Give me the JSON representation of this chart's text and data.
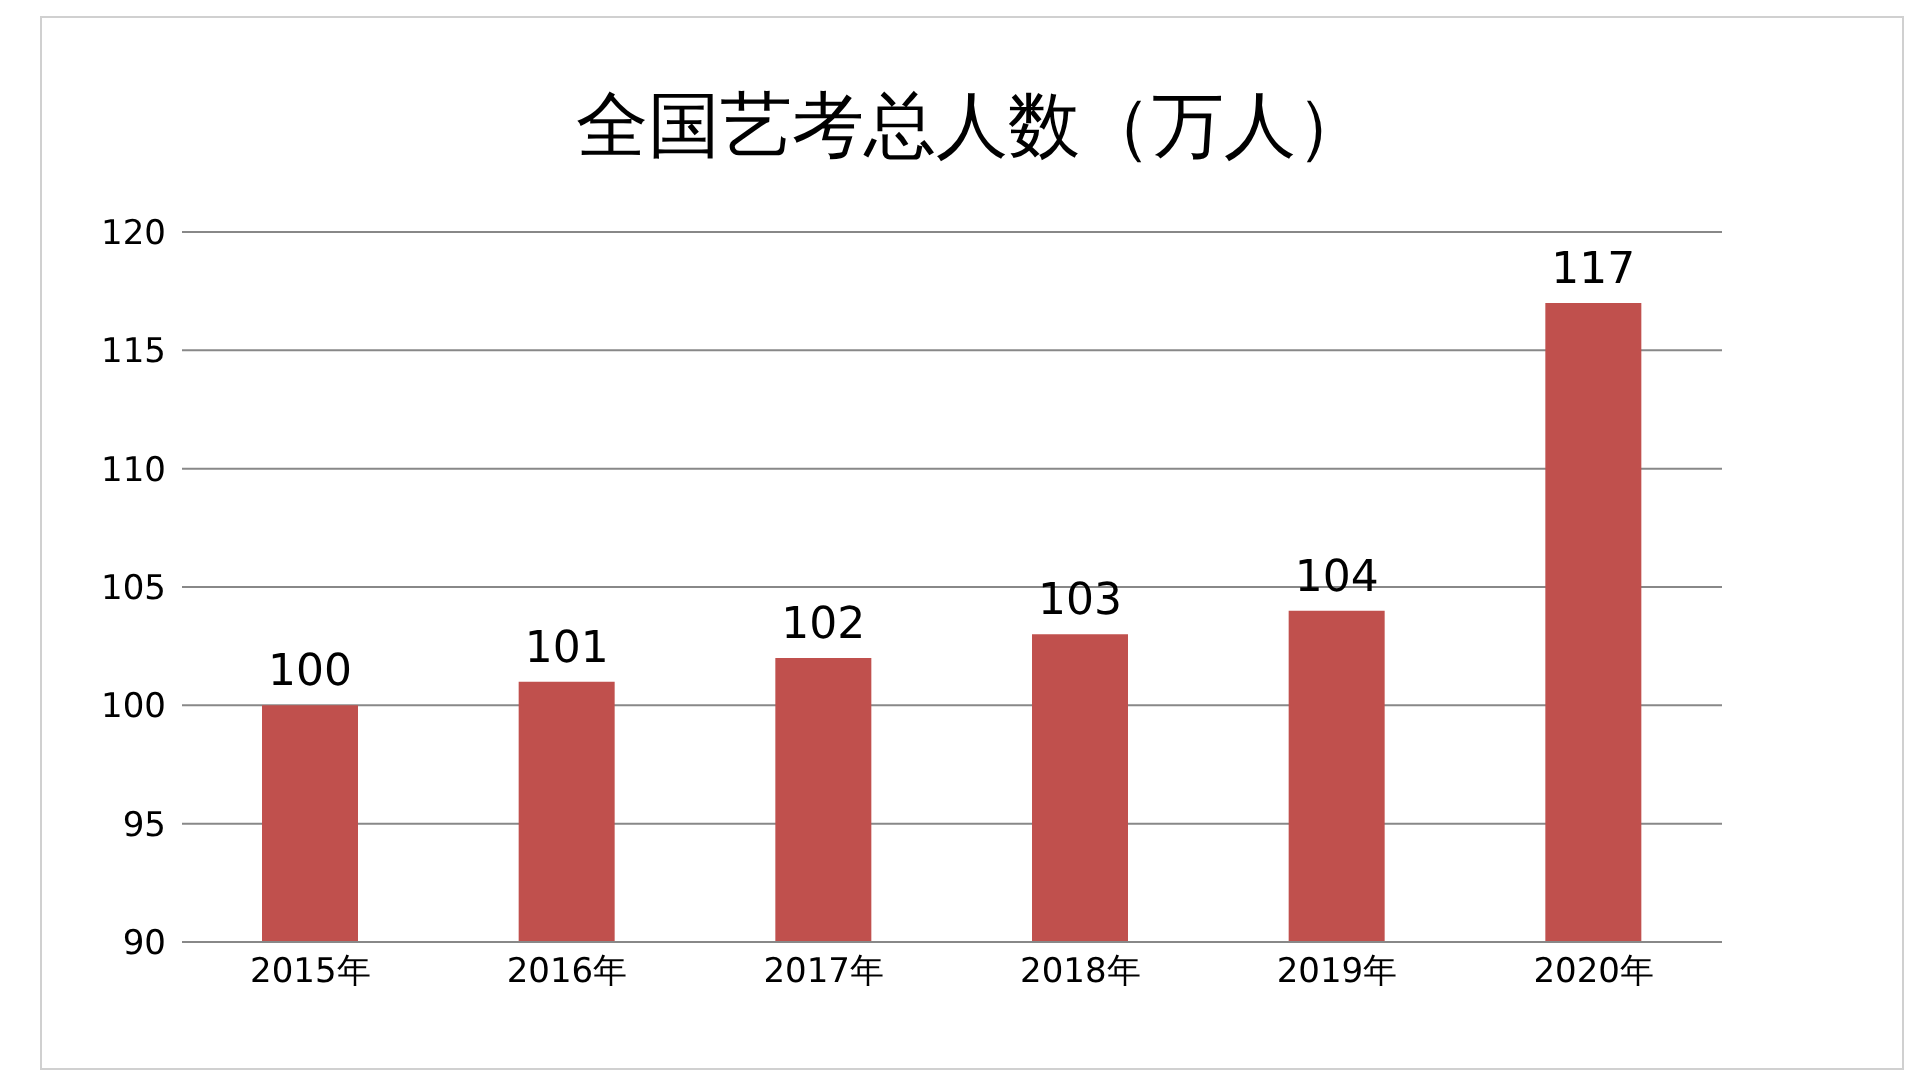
{
  "chart_data": {
    "type": "bar",
    "title": "全国艺考总人数（万人）",
    "categories": [
      "2015年",
      "2016年",
      "2017年",
      "2018年",
      "2019年",
      "2020年"
    ],
    "values": [
      100,
      101,
      102,
      103,
      104,
      117
    ],
    "color": "#c0504d",
    "ylim": [
      90,
      120
    ],
    "yticks": [
      90,
      95,
      100,
      105,
      110,
      115,
      120
    ],
    "grid": "y",
    "data_labels": true,
    "legend": false
  }
}
